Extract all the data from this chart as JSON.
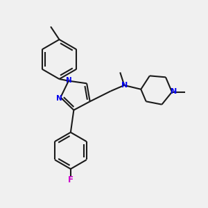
{
  "bg_color": "#f0f0f0",
  "bond_color": "#1a1a1a",
  "n_color": "#0000ee",
  "f_color": "#cc00cc",
  "lw": 1.5,
  "figsize": [
    3.0,
    3.0
  ],
  "dpi": 100,
  "xlim": [
    0,
    10
  ],
  "ylim": [
    0,
    10
  ]
}
